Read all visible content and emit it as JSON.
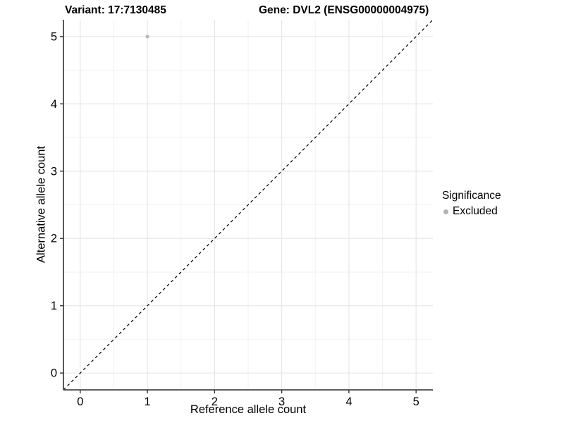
{
  "header": {
    "variant_title": "Variant: 17:7130485",
    "gene_title": "Gene: DVL2 (ENSG00000004975)"
  },
  "axes": {
    "x": {
      "label": "Reference allele count"
    },
    "y": {
      "label": "Alternative allele count"
    }
  },
  "legend": {
    "title": "Significance",
    "items": [
      {
        "label": "Excluded",
        "marker": "circle",
        "color": "#b3b3b3"
      }
    ]
  },
  "colors": {
    "background": "#ffffff",
    "axis_line": "#474747",
    "tick_mark": "#333333",
    "grid_major": "#e4e4e4",
    "grid_minor": "#f2f2f2",
    "identity_line": "#000000",
    "point_excluded": "#b9b9b9",
    "text": "#000000"
  },
  "chart_data": {
    "type": "scatter",
    "title": "",
    "xlabel": "Reference allele count",
    "ylabel": "Alternative allele count",
    "xlim": [
      -0.25,
      5.25
    ],
    "ylim": [
      -0.25,
      5.25
    ],
    "x_ticks": [
      0,
      1,
      2,
      3,
      4,
      5
    ],
    "y_ticks": [
      0,
      1,
      2,
      3,
      4,
      5
    ],
    "x_minor": [
      0.5,
      1.5,
      2.5,
      3.5,
      4.5
    ],
    "y_minor": [
      0.5,
      1.5,
      2.5,
      3.5,
      4.5
    ],
    "grid": "major+minor",
    "legend_position": "right",
    "identity_line": {
      "style": "dashed",
      "slope": 1,
      "intercept": 0
    },
    "series": [
      {
        "name": "Excluded",
        "color": "#b9b9b9",
        "points": [
          {
            "x": 1,
            "y": 5
          }
        ]
      }
    ]
  }
}
